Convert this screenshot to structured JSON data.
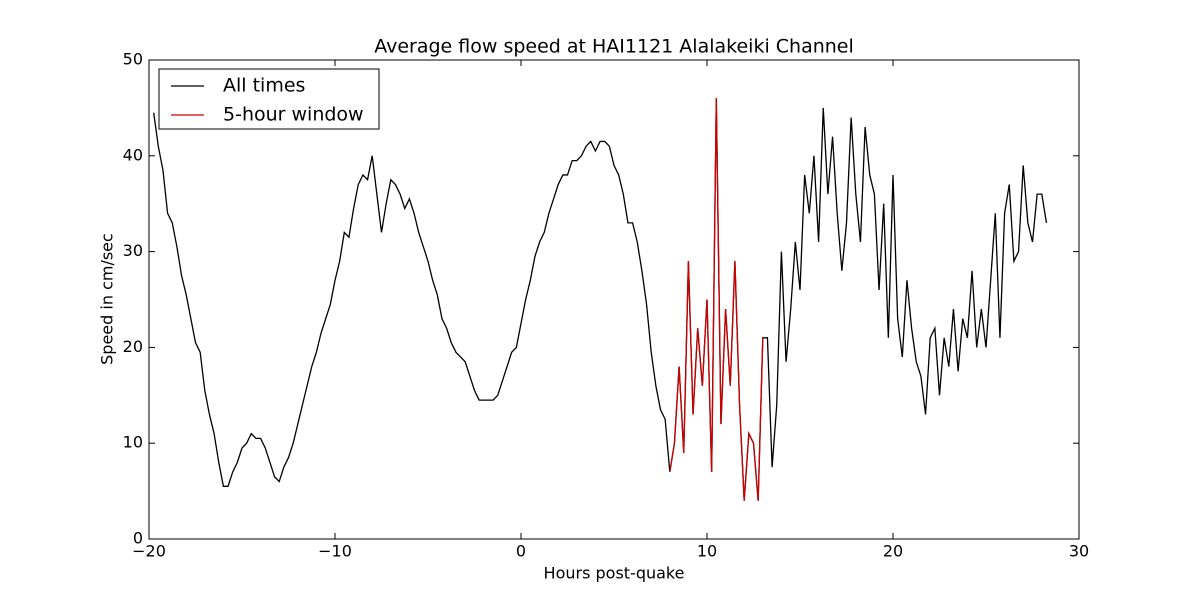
{
  "chart_data": {
    "type": "line",
    "title": "Average flow speed at HAI1121   Alalakeiki Channel",
    "xlabel": "Hours post-quake",
    "ylabel": "Speed in cm/sec",
    "xlim": [
      -20,
      30
    ],
    "ylim": [
      0,
      50
    ],
    "xticks": [
      {
        "value": -20,
        "label": "−20"
      },
      {
        "value": -10,
        "label": "−10"
      },
      0,
      10,
      20,
      30
    ],
    "yticks": [
      0,
      10,
      20,
      30,
      40,
      50
    ],
    "legend": "upper left",
    "x": [
      -19.75,
      -19.5,
      -19.25,
      -19,
      -18.75,
      -18.5,
      -18.25,
      -18,
      -17.75,
      -17.5,
      -17.25,
      -17,
      -16.75,
      -16.5,
      -16.25,
      -16,
      -15.75,
      -15.5,
      -15.25,
      -15,
      -14.75,
      -14.5,
      -14.25,
      -14,
      -13.75,
      -13.5,
      -13.25,
      -13,
      -12.75,
      -12.5,
      -12.25,
      -12,
      -11.75,
      -11.5,
      -11.25,
      -11,
      -10.75,
      -10.5,
      -10.25,
      -10,
      -9.75,
      -9.5,
      -9.25,
      -9,
      -8.75,
      -8.5,
      -8.25,
      -8,
      -7.75,
      -7.5,
      -7.25,
      -7,
      -6.75,
      -6.5,
      -6.25,
      -6,
      -5.75,
      -5.5,
      -5.25,
      -5,
      -4.75,
      -4.5,
      -4.25,
      -4,
      -3.75,
      -3.5,
      -3.25,
      -3,
      -2.75,
      -2.5,
      -2.25,
      -2,
      -1.75,
      -1.5,
      -1.25,
      -1,
      -0.75,
      -0.5,
      -0.25,
      0,
      0.25,
      0.5,
      0.75,
      1,
      1.25,
      1.5,
      1.75,
      2,
      2.25,
      2.5,
      2.75,
      3,
      3.25,
      3.5,
      3.75,
      4,
      4.25,
      4.5,
      4.75,
      5,
      5.25,
      5.5,
      5.75,
      6,
      6.25,
      6.5,
      6.75,
      7,
      7.25,
      7.5,
      7.75,
      8,
      8.25,
      8.5,
      8.75,
      9,
      9.25,
      9.5,
      9.75,
      10,
      10.25,
      10.5,
      10.75,
      11,
      11.25,
      11.5,
      11.75,
      12,
      12.25,
      12.5,
      12.75,
      13,
      13.25,
      13.5,
      13.75,
      14,
      14.25,
      14.5,
      14.75,
      15,
      15.25,
      15.5,
      15.75,
      16,
      16.25,
      16.5,
      16.75,
      17,
      17.25,
      17.5,
      17.75,
      18,
      18.25,
      18.5,
      18.75,
      19,
      19.25,
      19.5,
      19.75,
      20,
      20.25,
      20.5,
      20.75,
      21,
      21.25,
      21.5,
      21.75,
      22,
      22.25,
      22.5,
      22.75,
      23,
      23.25,
      23.5,
      23.75,
      24,
      24.25,
      24.5,
      24.75,
      25,
      25.25,
      25.5,
      25.75,
      26,
      26.25,
      26.5,
      26.75,
      27,
      27.25,
      27.5,
      27.75,
      28,
      28.25
    ],
    "series": [
      {
        "name": "All times",
        "color": "#000000",
        "values": [
          44.5,
          41,
          38.5,
          34,
          33,
          30.5,
          27.5,
          25.5,
          23,
          20.5,
          19.5,
          15.5,
          13,
          11,
          8,
          5.5,
          5.5,
          7,
          8,
          9.5,
          10,
          11,
          10.5,
          10.5,
          9.5,
          8,
          6.5,
          6,
          7.5,
          8.5,
          10,
          12,
          14,
          16,
          18,
          19.5,
          21.5,
          23,
          24.5,
          27,
          29,
          32,
          31.5,
          34.5,
          37,
          38,
          37.5,
          40,
          36,
          32,
          35,
          37.5,
          37,
          36,
          34.5,
          35.5,
          34,
          32,
          30.5,
          29,
          27,
          25.5,
          23,
          22,
          20.5,
          19.5,
          19,
          18.5,
          17,
          15.5,
          14.5,
          14.5,
          14.5,
          14.5,
          15,
          16.5,
          18,
          19.5,
          20,
          22.5,
          25,
          27,
          29.5,
          31,
          32,
          34,
          35.5,
          37,
          38,
          38,
          39.5,
          39.5,
          40,
          41,
          41.5,
          40.5,
          41.5,
          41.5,
          41,
          39,
          38,
          36,
          33,
          33,
          31,
          28,
          24.5,
          19.5,
          16,
          13.5,
          12.5,
          7,
          10,
          18,
          9,
          29,
          13,
          22,
          16,
          25,
          7,
          46,
          12,
          24,
          16,
          29,
          14,
          4,
          11,
          10,
          4,
          21,
          21,
          7.5,
          14,
          30,
          18.5,
          24,
          31,
          26,
          38,
          34,
          40,
          31,
          45,
          36,
          42,
          34,
          28,
          33,
          44,
          36,
          31,
          43,
          38,
          36,
          26,
          35,
          21,
          38,
          23,
          19,
          27,
          22,
          18.5,
          17,
          13,
          21,
          22,
          15,
          21,
          18,
          24,
          17.5,
          23,
          21,
          28,
          20,
          24,
          20,
          27,
          34,
          21,
          34,
          37,
          29,
          30,
          39,
          33,
          31,
          36,
          36,
          33
        ]
      },
      {
        "name": "5-hour window",
        "color": "#cc0000",
        "values": [
          null,
          null,
          null,
          null,
          null,
          null,
          null,
          null,
          null,
          null,
          null,
          null,
          null,
          null,
          null,
          null,
          null,
          null,
          null,
          null,
          null,
          null,
          null,
          null,
          null,
          null,
          null,
          null,
          null,
          null,
          null,
          null,
          null,
          null,
          null,
          null,
          null,
          null,
          null,
          null,
          null,
          null,
          null,
          null,
          null,
          null,
          null,
          null,
          null,
          null,
          null,
          null,
          null,
          null,
          null,
          null,
          null,
          null,
          null,
          null,
          null,
          null,
          null,
          null,
          null,
          null,
          null,
          null,
          null,
          null,
          null,
          null,
          null,
          null,
          null,
          null,
          null,
          null,
          null,
          null,
          null,
          null,
          null,
          null,
          null,
          null,
          null,
          null,
          null,
          null,
          null,
          null,
          null,
          null,
          null,
          null,
          null,
          null,
          null,
          null,
          null,
          null,
          null,
          null,
          null,
          null,
          null,
          null,
          null,
          null,
          null,
          7,
          10,
          18,
          9,
          29,
          13,
          22,
          16,
          25,
          7,
          46,
          12,
          24,
          16,
          29,
          14,
          4,
          11,
          10,
          4,
          21,
          null,
          null,
          null,
          null,
          null,
          null,
          null,
          null,
          null,
          null,
          null,
          null,
          null,
          null,
          null,
          null,
          null,
          null,
          null,
          null,
          null,
          null,
          null,
          null,
          null,
          null,
          null,
          null,
          null,
          null,
          null,
          null,
          null,
          null,
          null,
          null,
          null,
          null,
          null,
          null,
          null,
          null,
          null,
          null,
          null,
          null,
          null,
          null,
          null,
          null,
          null,
          null,
          null,
          null,
          null,
          null,
          null,
          null,
          null,
          null,
          null
        ]
      }
    ]
  }
}
